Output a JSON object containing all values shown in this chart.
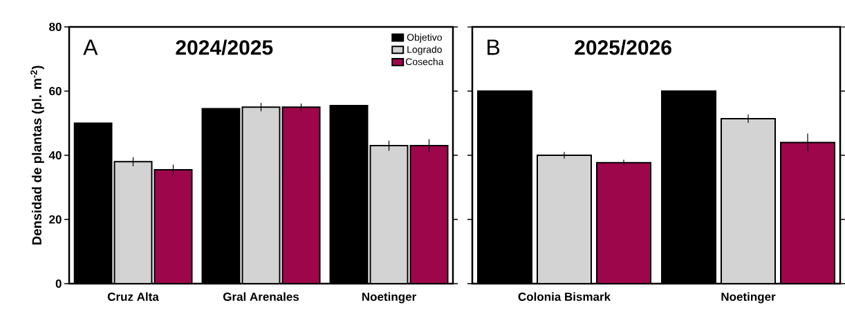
{
  "chart_data": [
    {
      "type": "bar",
      "title": "2024/2025",
      "annotations": [
        "A"
      ],
      "ylabel": "Densidad de plantas (pl. m$^{-2}$)",
      "categories": [
        "Cruz Alta",
        "Gral Arenales",
        "Noetinger"
      ],
      "ylim": [
        0,
        80
      ],
      "yticks": [
        0,
        20,
        40,
        60,
        80
      ],
      "legend": "top right",
      "series": [
        {
          "name": "Objetivo",
          "color": "#000000",
          "values": [
            50,
            54.5,
            55.5
          ]
        },
        {
          "name": "Logrado",
          "color": "#d3d3d3",
          "values": [
            38,
            55,
            43
          ],
          "errors": [
            1.4,
            1.3,
            1.6
          ]
        },
        {
          "name": "Cosecha",
          "color": "#9e064b",
          "values": [
            35.5,
            55,
            43
          ],
          "errors": [
            1.6,
            1.1,
            2
          ]
        }
      ]
    },
    {
      "type": "bar",
      "title": "2025/2026",
      "annotations": [
        "B"
      ],
      "categories": [
        "Colonia Bismark",
        "Noetinger"
      ],
      "ylim": [
        0,
        80
      ],
      "yticks": [
        0,
        20,
        40,
        60,
        80
      ],
      "tick_labels": "x",
      "series": [
        {
          "color": "#000000",
          "values": [
            60,
            60
          ]
        },
        {
          "color": "#d3d3d3",
          "values": [
            40,
            51.4
          ],
          "errors": [
            1,
            1.3
          ]
        },
        {
          "color": "#9e064b",
          "values": [
            37.7,
            44
          ],
          "errors": [
            0.9,
            2.8
          ]
        }
      ]
    }
  ]
}
